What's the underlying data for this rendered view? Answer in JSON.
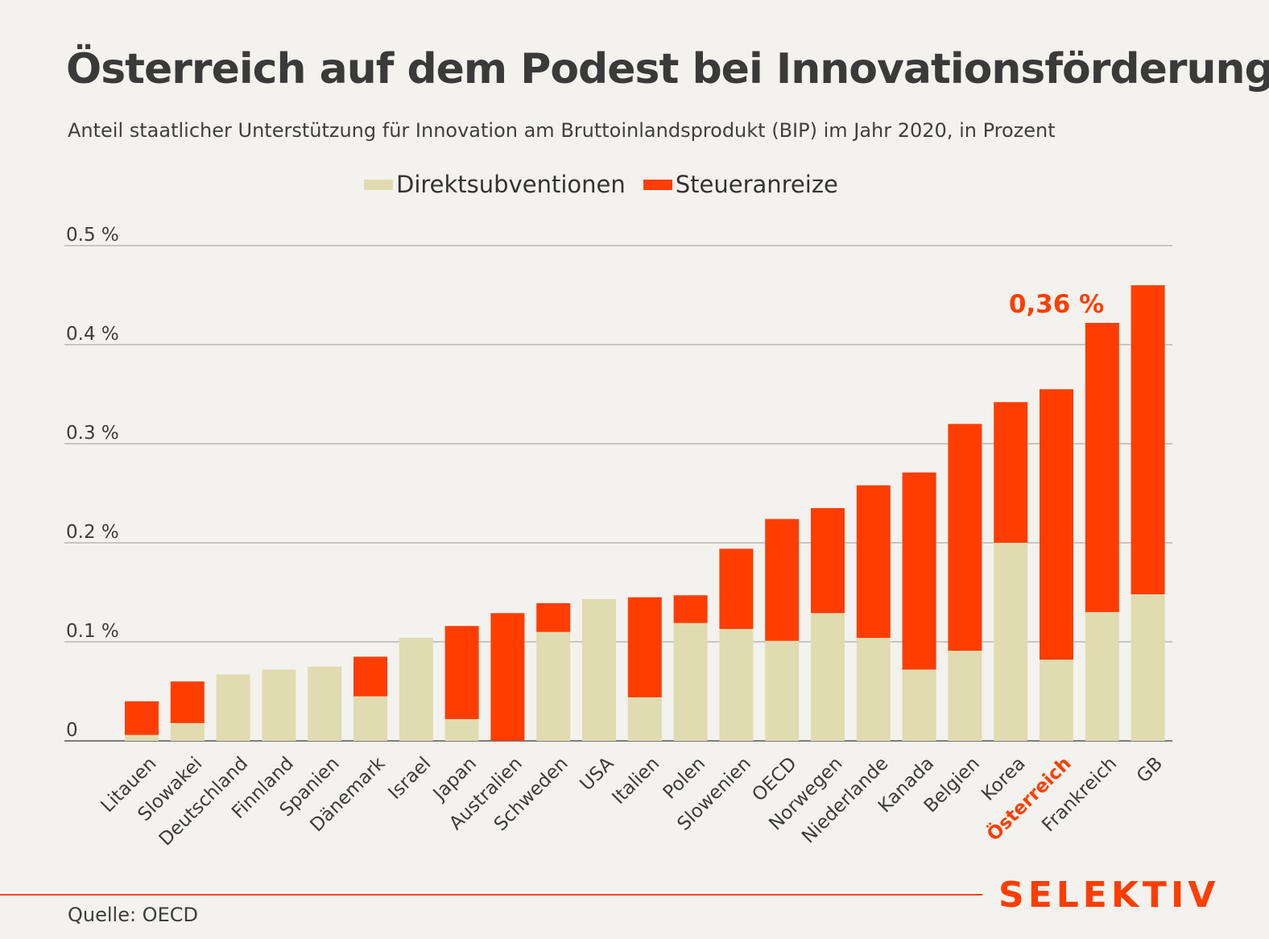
{
  "header": {
    "title": "Österreich auf dem Podest bei Innovationsförderung",
    "subtitle": "Anteil staatlicher Unterstützung für Innovation am Bruttoinlandsprodukt (BIP) im Jahr 2020, in Prozent"
  },
  "legend": {
    "direct_label": "Direktsubventionen",
    "tax_label": "Steueranreize"
  },
  "colors": {
    "direct": "#e0dbb0",
    "tax": "#ff3d00",
    "highlight_text": "#ff3d00",
    "grid": "#9a9a9a",
    "text": "#3c3c3c"
  },
  "chart_data": {
    "type": "bar",
    "stacked": true,
    "title": "Österreich auf dem Podest bei Innovationsförderung",
    "subtitle": "Anteil staatlicher Unterstützung für Innovation am Bruttoinlandsprodukt (BIP) im Jahr 2020, in Prozent",
    "categories": [
      "Litauen",
      "Slowakei",
      "Deutschland",
      "Finnland",
      "Spanien",
      "Dänemark",
      "Israel",
      "Japan",
      "Australien",
      "Schweden",
      "USA",
      "Italien",
      "Polen",
      "Slowenien",
      "OECD",
      "Norwegen",
      "Niederlande",
      "Kanada",
      "Belgien",
      "Korea",
      "Österreich",
      "Frankreich",
      "GB"
    ],
    "series": [
      {
        "name": "Direktsubventionen",
        "values": [
          0.006,
          0.018,
          0.067,
          0.072,
          0.075,
          0.045,
          0.104,
          0.022,
          0.0,
          0.11,
          0.143,
          0.044,
          0.119,
          0.113,
          0.101,
          0.129,
          0.104,
          0.072,
          0.091,
          0.2,
          0.082,
          0.13,
          0.148
        ]
      },
      {
        "name": "Steueranreize",
        "values": [
          0.034,
          0.042,
          0.0,
          0.0,
          0.0,
          0.04,
          0.0,
          0.094,
          0.129,
          0.029,
          0.0,
          0.101,
          0.028,
          0.081,
          0.123,
          0.106,
          0.154,
          0.199,
          0.229,
          0.142,
          0.273,
          0.292,
          0.312
        ]
      }
    ],
    "yticks": [
      {
        "value": 0,
        "label": "0"
      },
      {
        "value": 0.1,
        "label": "0.1 %"
      },
      {
        "value": 0.2,
        "label": "0.2 %"
      },
      {
        "value": 0.3,
        "label": "0.3 %"
      },
      {
        "value": 0.4,
        "label": "0.4 %"
      },
      {
        "value": 0.5,
        "label": "0.5 %"
      }
    ],
    "ylim": [
      0,
      0.5
    ],
    "grid": true,
    "legend_position": "top",
    "highlight_category": "Österreich",
    "annotations": [
      {
        "category": "Österreich",
        "text": "0,36 %"
      }
    ]
  },
  "footer": {
    "source": "Quelle: OECD",
    "brand": "SELEKTIV"
  }
}
